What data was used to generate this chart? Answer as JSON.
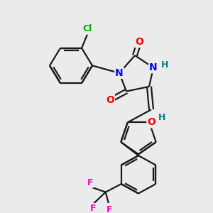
{
  "background_color": "#ebebeb",
  "bond_color": "#1a1a1a",
  "atom_colors": {
    "N": "#0000ff",
    "O": "#ff0000",
    "H": "#008080",
    "Cl": "#00aa00",
    "F": "#ff00cc"
  },
  "figsize": [
    3.0,
    3.0
  ],
  "dpi": 100
}
